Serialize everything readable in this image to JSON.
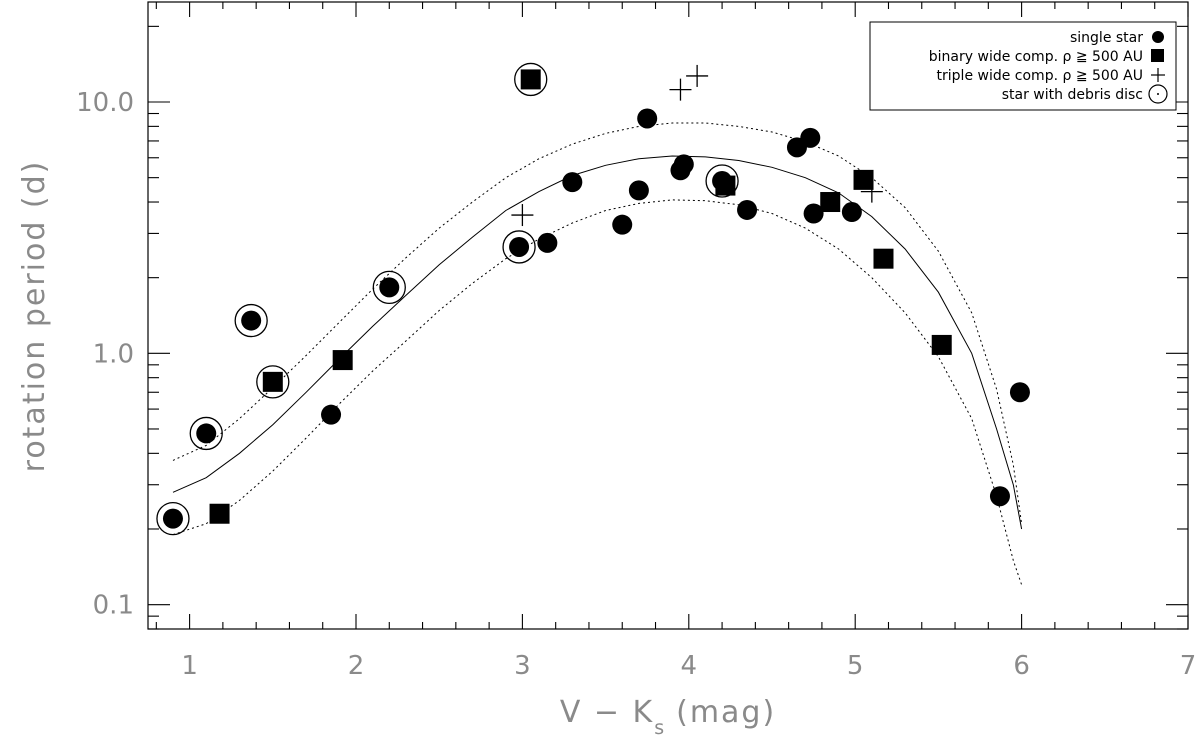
{
  "chart_data": {
    "type": "scatter",
    "title": "",
    "xlabel": {
      "main": "V − K",
      "sub": "s",
      "unit": "(mag)"
    },
    "ylabel": "rotation period (d)",
    "xlim": [
      0.75,
      7
    ],
    "ylim": [
      0.08,
      25
    ],
    "yscale": "log",
    "xticks": [
      1,
      2,
      3,
      4,
      5,
      6,
      7
    ],
    "yticks": [
      {
        "value": 0.1,
        "label": "0.1"
      },
      {
        "value": 1,
        "label": "1.0"
      },
      {
        "value": 10,
        "label": "10.0"
      }
    ],
    "legend": {
      "position": "top-right",
      "entries": [
        {
          "key": "single",
          "label": "single star"
        },
        {
          "key": "binary",
          "label": "binary wide comp. ρ ≧ 500 AU"
        },
        {
          "key": "triple",
          "label": "triple wide comp. ρ ≧ 500 AU"
        },
        {
          "key": "disc",
          "label": "star with debris disc"
        }
      ]
    },
    "series": [
      {
        "key": "single",
        "marker": "circle",
        "points": [
          [
            0.9,
            0.22
          ],
          [
            1.1,
            0.48
          ],
          [
            1.37,
            1.35
          ],
          [
            1.85,
            0.57
          ],
          [
            2.2,
            1.83
          ],
          [
            2.98,
            2.65
          ],
          [
            3.15,
            2.75
          ],
          [
            3.3,
            4.8
          ],
          [
            3.6,
            3.25
          ],
          [
            3.7,
            4.45
          ],
          [
            3.75,
            8.6
          ],
          [
            3.95,
            5.35
          ],
          [
            3.97,
            5.65
          ],
          [
            4.2,
            4.85
          ],
          [
            4.35,
            3.72
          ],
          [
            4.65,
            6.6
          ],
          [
            4.73,
            7.2
          ],
          [
            4.75,
            3.6
          ],
          [
            4.98,
            3.65
          ],
          [
            5.87,
            0.27
          ],
          [
            5.99,
            0.7
          ]
        ]
      },
      {
        "key": "binary",
        "marker": "square",
        "points": [
          [
            1.18,
            0.23
          ],
          [
            1.5,
            0.77
          ],
          [
            1.92,
            0.94
          ],
          [
            3.05,
            12.3
          ],
          [
            4.22,
            4.65
          ],
          [
            4.85,
            4.0
          ],
          [
            5.05,
            4.9
          ],
          [
            5.17,
            2.38
          ],
          [
            5.52,
            1.08
          ]
        ]
      },
      {
        "key": "triple",
        "marker": "plus",
        "points": [
          [
            3.0,
            3.55
          ],
          [
            3.95,
            11.2
          ],
          [
            4.05,
            12.7
          ],
          [
            5.1,
            4.4
          ]
        ]
      },
      {
        "key": "disc",
        "marker": "open-circle",
        "points": [
          [
            0.9,
            0.22
          ],
          [
            1.1,
            0.48
          ],
          [
            1.37,
            1.35
          ],
          [
            1.5,
            0.77
          ],
          [
            2.2,
            1.83
          ],
          [
            2.98,
            2.65
          ],
          [
            3.05,
            12.3
          ],
          [
            4.2,
            4.85
          ]
        ]
      }
    ],
    "fit": {
      "center": [
        [
          0.9,
          0.28
        ],
        [
          1.1,
          0.32
        ],
        [
          1.3,
          0.4
        ],
        [
          1.5,
          0.52
        ],
        [
          1.7,
          0.7
        ],
        [
          1.9,
          0.95
        ],
        [
          2.1,
          1.28
        ],
        [
          2.3,
          1.7
        ],
        [
          2.5,
          2.25
        ],
        [
          2.7,
          2.9
        ],
        [
          2.9,
          3.7
        ],
        [
          3.1,
          4.4
        ],
        [
          3.3,
          5.1
        ],
        [
          3.5,
          5.6
        ],
        [
          3.7,
          5.95
        ],
        [
          3.9,
          6.1
        ],
        [
          4.1,
          6.05
        ],
        [
          4.3,
          5.85
        ],
        [
          4.5,
          5.5
        ],
        [
          4.7,
          5.0
        ],
        [
          4.9,
          4.35
        ],
        [
          5.1,
          3.5
        ],
        [
          5.3,
          2.6
        ],
        [
          5.5,
          1.75
        ],
        [
          5.7,
          1.0
        ],
        [
          5.85,
          0.5
        ],
        [
          5.95,
          0.3
        ],
        [
          6.0,
          0.2
        ]
      ],
      "upper": [
        [
          0.9,
          0.375
        ],
        [
          1.1,
          0.43
        ],
        [
          1.3,
          0.55
        ],
        [
          1.5,
          0.73
        ],
        [
          1.7,
          0.98
        ],
        [
          1.9,
          1.33
        ],
        [
          2.1,
          1.8
        ],
        [
          2.3,
          2.4
        ],
        [
          2.5,
          3.15
        ],
        [
          2.7,
          4.0
        ],
        [
          2.9,
          5.0
        ],
        [
          3.1,
          5.95
        ],
        [
          3.3,
          6.8
        ],
        [
          3.5,
          7.5
        ],
        [
          3.7,
          8.0
        ],
        [
          3.9,
          8.25
        ],
        [
          4.1,
          8.25
        ],
        [
          4.3,
          8.0
        ],
        [
          4.5,
          7.6
        ],
        [
          4.7,
          6.95
        ],
        [
          4.9,
          6.1
        ],
        [
          5.1,
          5.0
        ],
        [
          5.3,
          3.8
        ],
        [
          5.5,
          2.55
        ],
        [
          5.7,
          1.45
        ],
        [
          5.85,
          0.72
        ],
        [
          5.95,
          0.36
        ],
        [
          6.0,
          0.21
        ]
      ],
      "lower": [
        [
          0.9,
          0.19
        ],
        [
          1.1,
          0.21
        ],
        [
          1.3,
          0.26
        ],
        [
          1.5,
          0.34
        ],
        [
          1.7,
          0.46
        ],
        [
          1.9,
          0.63
        ],
        [
          2.1,
          0.85
        ],
        [
          2.3,
          1.12
        ],
        [
          2.5,
          1.48
        ],
        [
          2.7,
          1.9
        ],
        [
          2.9,
          2.38
        ],
        [
          3.1,
          2.85
        ],
        [
          3.3,
          3.3
        ],
        [
          3.5,
          3.7
        ],
        [
          3.7,
          3.95
        ],
        [
          3.9,
          4.08
        ],
        [
          4.1,
          4.05
        ],
        [
          4.3,
          3.9
        ],
        [
          4.5,
          3.6
        ],
        [
          4.7,
          3.15
        ],
        [
          4.9,
          2.6
        ],
        [
          5.1,
          2.0
        ],
        [
          5.3,
          1.45
        ],
        [
          5.5,
          0.97
        ],
        [
          5.7,
          0.55
        ],
        [
          5.85,
          0.27
        ],
        [
          5.95,
          0.15
        ],
        [
          6.0,
          0.12
        ]
      ]
    }
  }
}
